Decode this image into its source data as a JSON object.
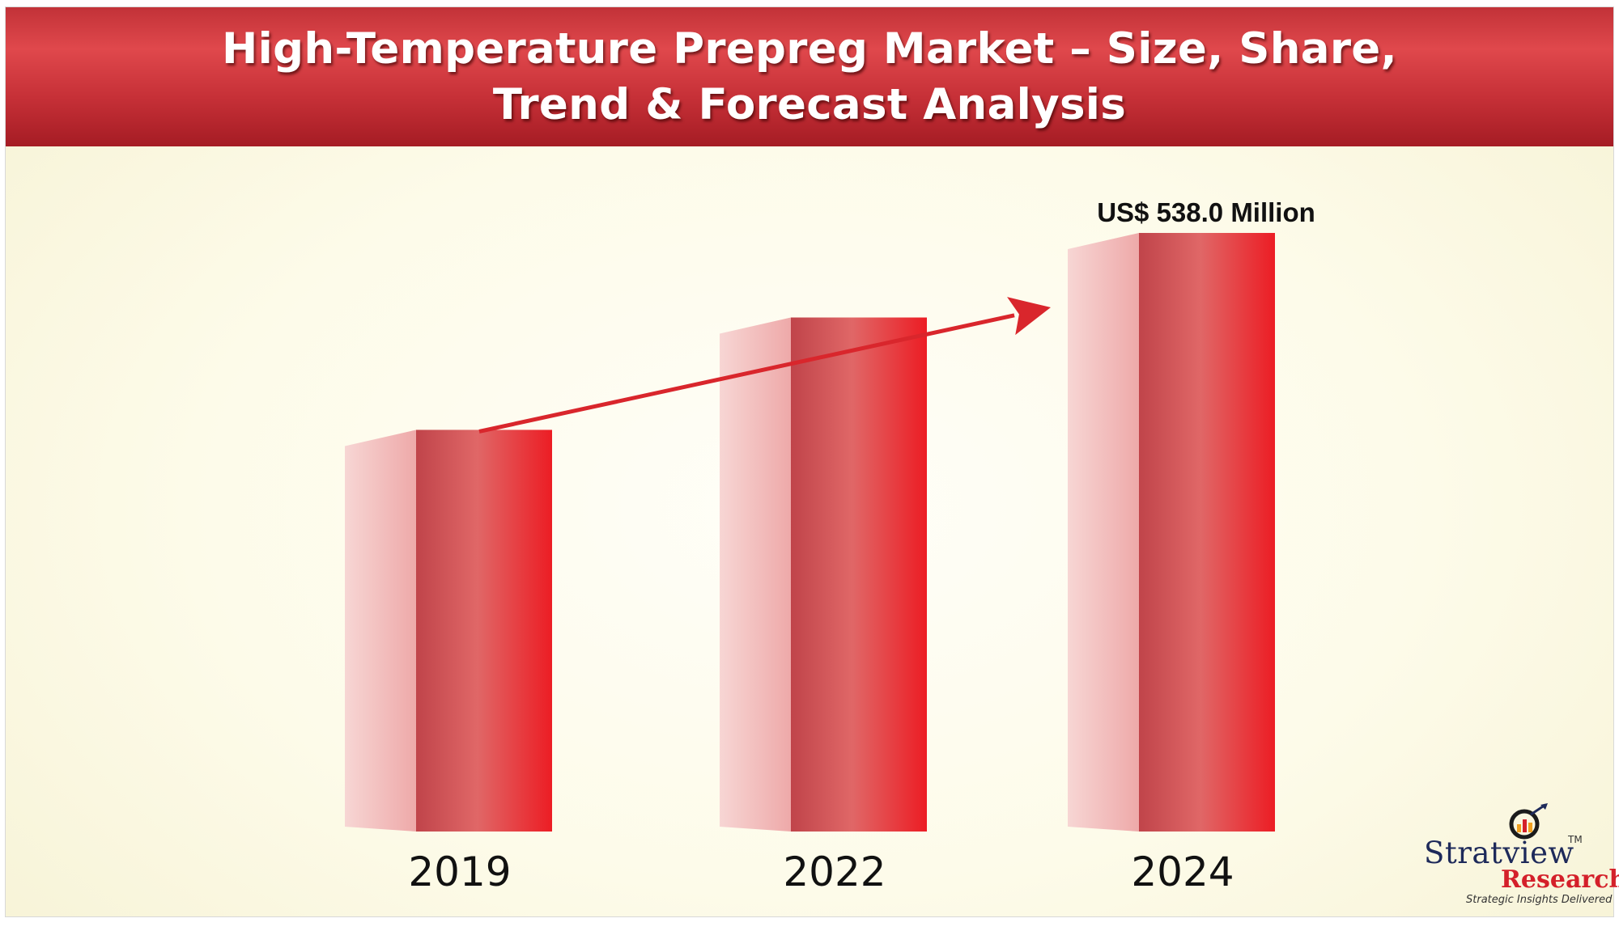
{
  "header": {
    "title_line1": "High-Temperature Prepreg Market – Size, Share,",
    "title_line2": "Trend & Forecast Analysis"
  },
  "chart_data": {
    "type": "bar",
    "title": "High-Temperature Prepreg Market – Size, Share, Trend & Forecast Analysis",
    "categories": [
      "2019",
      "2022",
      "2024"
    ],
    "values": [
      361,
      462,
      538.0
    ],
    "value_labels": [
      "",
      "",
      "US$ 538.0 Million"
    ],
    "unit": "US$ Million",
    "xlabel": "",
    "ylabel": "",
    "ylim": [
      0,
      600
    ],
    "grid": false,
    "legend": "none",
    "trend_arrow": true,
    "colors": {
      "bar_front_dark": "#c0444a",
      "bar_front_light": "#e06767",
      "bar_front_edge": "#ec1d24",
      "bar_side": "#f2bcbc",
      "arrow": "#d9262c"
    }
  },
  "logo": {
    "brand_top": "Stratview",
    "trademark": "TM",
    "brand_bottom": "Research",
    "tagline": "Strategic Insights Delivered"
  }
}
